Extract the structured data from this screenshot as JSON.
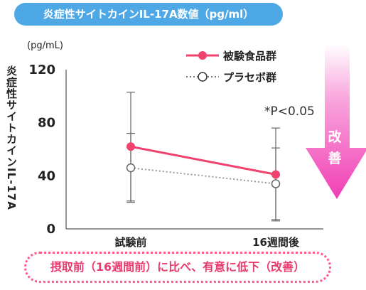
{
  "header": {
    "title": "炎症性サイトカインIL-17A数値（pg/ml）"
  },
  "y_axis_title": "炎症性サイトカインIL-17A",
  "footer": {
    "text": "摂取前（16週間前）に比べ、有意に低下（改善）"
  },
  "arrow": {
    "label_line1": "改",
    "label_line2": "善"
  },
  "chart_data": {
    "type": "line",
    "unit_label": "(pg/mL)",
    "categories": [
      "試験前",
      "16週間後"
    ],
    "ylim": [
      0,
      120
    ],
    "yticks": [
      0,
      40,
      80,
      120
    ],
    "series": [
      {
        "name": "被験食品群",
        "values": [
          62,
          41
        ],
        "errors": [
          41,
          35
        ],
        "color": "#f0426e",
        "style": "solid",
        "marker": "filled-circle"
      },
      {
        "name": "プラセボ群",
        "values": [
          46,
          34
        ],
        "errors": [
          26,
          27
        ],
        "color": "#999999",
        "style": "dotted",
        "marker": "open-circle"
      }
    ],
    "annotation": "*P<0.05",
    "legend_position": "top-right",
    "grid": false
  }
}
